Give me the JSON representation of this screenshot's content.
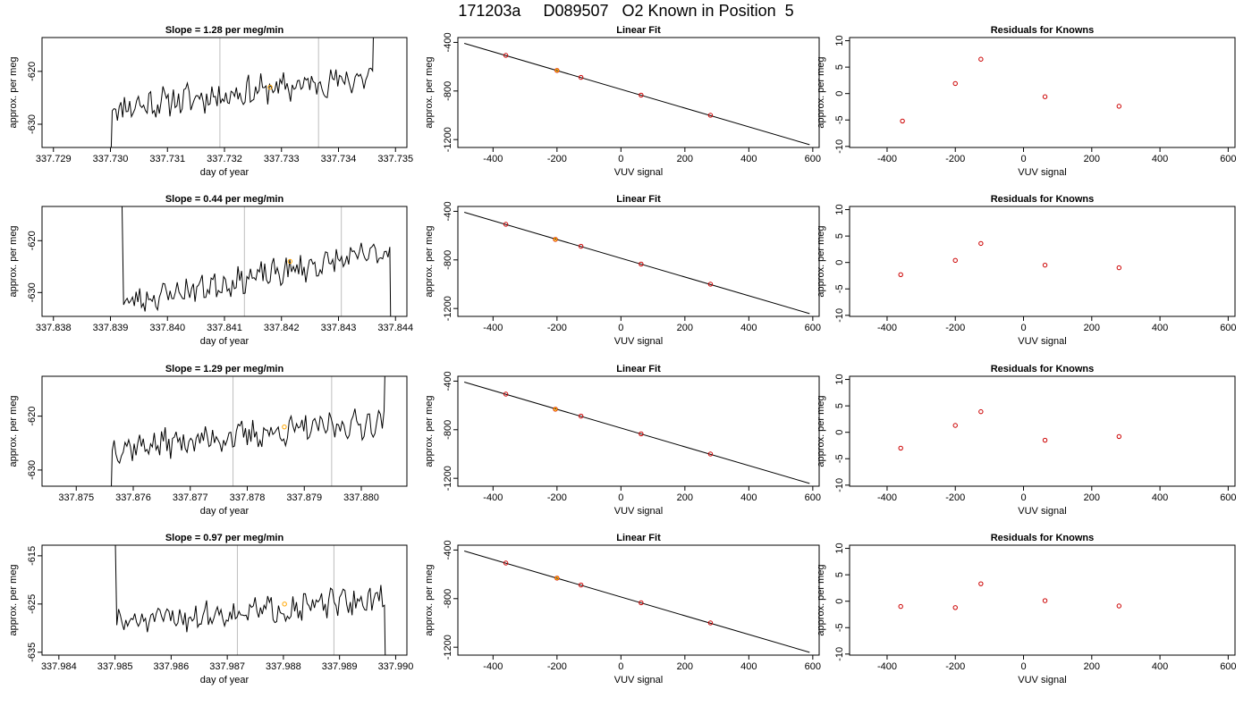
{
  "title": "171203a     D089507   O2 Known in Position  5",
  "colors": {
    "trace": "#000000",
    "vline": "#bebebe",
    "marker_orange": "#ffa500",
    "marker_red": "#cc0000",
    "fitline": "#000000"
  },
  "chart_data": [
    {
      "row": 1,
      "panels": [
        {
          "type": "line",
          "title": "Slope =  1.28  per meg/min",
          "xlabel": "day of year",
          "ylabel": "approx. per meg",
          "xlim": [
            337.7288,
            337.7352
          ],
          "ylim": [
            -634.4,
            -613.6
          ],
          "xticks": [
            337.729,
            337.73,
            337.731,
            337.732,
            337.733,
            337.734,
            337.735
          ],
          "xtick_labels": [
            "337.729",
            "337.730",
            "337.731",
            "337.732",
            "337.733",
            "337.734",
            "337.735"
          ],
          "yticks": [
            -630,
            -620
          ],
          "ytick_labels": [
            "-630",
            "-620"
          ],
          "vlines": [
            337.73192,
            337.73365
          ],
          "trace": {
            "x_start": 337.73,
            "x_end": 337.7346,
            "baseline_start": -627,
            "baseline_end": -621,
            "noise": 2.4,
            "seed": 11,
            "start_y": -640,
            "end_y": -610
          },
          "marker": {
            "x": 337.7328,
            "y": -623
          }
        },
        {
          "type": "scatter",
          "title": "Linear Fit",
          "xlabel": "VUV signal",
          "ylabel": "approx. per meg",
          "xlim": [
            -510,
            620
          ],
          "ylim": [
            -1265,
            -360
          ],
          "xticks": [
            -400,
            -200,
            0,
            200,
            400,
            600
          ],
          "xtick_labels": [
            "-400",
            "-200",
            "0",
            "200",
            "400",
            "600"
          ],
          "yticks": [
            -1200,
            -800,
            -400
          ],
          "ytick_labels": [
            "-1200",
            "-800",
            "-400"
          ],
          "line": {
            "x": [
              -490,
              590
            ],
            "y": [
              -408,
              -1242
            ]
          },
          "points": [
            {
              "x": -360,
              "y": -507
            },
            {
              "x": -200,
              "y": -631
            },
            {
              "x": -125,
              "y": -688
            },
            {
              "x": 63,
              "y": -834
            },
            {
              "x": 280,
              "y": -1000
            }
          ],
          "highlight_index": 1
        },
        {
          "type": "scatter",
          "title": "Residuals for Knowns",
          "xlabel": "VUV signal",
          "ylabel": "approx. per meg",
          "xlim": [
            -510,
            620
          ],
          "ylim": [
            -10.2,
            10.6
          ],
          "xticks": [
            -400,
            -200,
            0,
            200,
            400,
            600
          ],
          "xtick_labels": [
            "-400",
            "-200",
            "0",
            "200",
            "400",
            "600"
          ],
          "yticks": [
            -10,
            -5,
            0,
            5,
            10
          ],
          "ytick_labels": [
            "-10",
            "-5",
            "0",
            "5",
            "10"
          ],
          "points": [
            {
              "x": -355,
              "y": -5.2
            },
            {
              "x": -200,
              "y": 1.9
            },
            {
              "x": -125,
              "y": 6.5
            },
            {
              "x": 63,
              "y": -0.6
            },
            {
              "x": 280,
              "y": -2.4
            }
          ]
        }
      ]
    },
    {
      "row": 2,
      "panels": [
        {
          "type": "line",
          "title": "Slope =  0.44  per meg/min",
          "xlabel": "day of year",
          "ylabel": "approx. per meg",
          "xlim": [
            337.8378,
            337.8442
          ],
          "ylim": [
            -634.6,
            -613.4
          ],
          "xticks": [
            337.838,
            337.839,
            337.84,
            337.841,
            337.842,
            337.843,
            337.844
          ],
          "xtick_labels": [
            "337.838",
            "337.839",
            "337.840",
            "337.841",
            "337.842",
            "337.843",
            "337.844"
          ],
          "yticks": [
            -630,
            -620
          ],
          "ytick_labels": [
            "-630",
            "-620"
          ],
          "vlines": [
            337.84135,
            337.84305
          ],
          "trace": {
            "x_start": 337.8392,
            "x_end": 337.8439,
            "baseline_start": -632,
            "baseline_end": -622,
            "noise": 2.2,
            "seed": 23,
            "start_y": -610,
            "end_y": -640
          },
          "marker": {
            "x": 337.84215,
            "y": -624
          }
        },
        {
          "type": "scatter",
          "title": "Linear Fit",
          "xlabel": "VUV signal",
          "ylabel": "approx. per meg",
          "xlim": [
            -510,
            620
          ],
          "ylim": [
            -1265,
            -360
          ],
          "xticks": [
            -400,
            -200,
            0,
            200,
            400,
            600
          ],
          "xtick_labels": [
            "-400",
            "-200",
            "0",
            "200",
            "400",
            "600"
          ],
          "yticks": [
            -1200,
            -800,
            -400
          ],
          "ytick_labels": [
            "-1200",
            "-800",
            "-400"
          ],
          "line": {
            "x": [
              -490,
              590
            ],
            "y": [
              -408,
              -1242
            ]
          },
          "points": [
            {
              "x": -360,
              "y": -507
            },
            {
              "x": -205,
              "y": -631
            },
            {
              "x": -125,
              "y": -688
            },
            {
              "x": 63,
              "y": -834
            },
            {
              "x": 280,
              "y": -1000
            }
          ],
          "highlight_index": 1
        },
        {
          "type": "scatter",
          "title": "Residuals for Knowns",
          "xlabel": "VUV signal",
          "ylabel": "approx. per meg",
          "xlim": [
            -510,
            620
          ],
          "ylim": [
            -10.2,
            10.6
          ],
          "xticks": [
            -400,
            -200,
            0,
            200,
            400,
            600
          ],
          "xtick_labels": [
            "-400",
            "-200",
            "0",
            "200",
            "400",
            "600"
          ],
          "yticks": [
            -10,
            -5,
            0,
            5,
            10
          ],
          "ytick_labels": [
            "-10",
            "-5",
            "0",
            "5",
            "10"
          ],
          "points": [
            {
              "x": -360,
              "y": -2.3
            },
            {
              "x": -200,
              "y": 0.4
            },
            {
              "x": -125,
              "y": 3.6
            },
            {
              "x": 63,
              "y": -0.5
            },
            {
              "x": 280,
              "y": -1.0
            }
          ]
        }
      ]
    },
    {
      "row": 3,
      "panels": [
        {
          "type": "line",
          "title": "Slope =  1.29  per meg/min",
          "xlabel": "day of year",
          "ylabel": "approx. per meg",
          "xlim": [
            337.8744,
            337.8808
          ],
          "ylim": [
            -633.0,
            -612.6
          ],
          "xticks": [
            337.875,
            337.876,
            337.877,
            337.878,
            337.879,
            337.88
          ],
          "xtick_labels": [
            "337.875",
            "337.876",
            "337.877",
            "337.878",
            "337.879",
            "337.880"
          ],
          "yticks": [
            -630,
            -620
          ],
          "ytick_labels": [
            "-630",
            "-620"
          ],
          "vlines": [
            337.87775,
            337.87948
          ],
          "trace": {
            "x_start": 337.8756,
            "x_end": 337.8804,
            "baseline_start": -626,
            "baseline_end": -621,
            "noise": 2.2,
            "seed": 37,
            "start_y": -640,
            "end_y": -610
          },
          "marker": {
            "x": 337.87865,
            "y": -622
          }
        },
        {
          "type": "scatter",
          "title": "Linear Fit",
          "xlabel": "VUV signal",
          "ylabel": "approx. per meg",
          "xlim": [
            -510,
            620
          ],
          "ylim": [
            -1265,
            -360
          ],
          "xticks": [
            -400,
            -200,
            0,
            200,
            400,
            600
          ],
          "xtick_labels": [
            "-400",
            "-200",
            "0",
            "200",
            "400",
            "600"
          ],
          "yticks": [
            -1200,
            -800,
            -400
          ],
          "ytick_labels": [
            "-1200",
            "-800",
            "-400"
          ],
          "line": {
            "x": [
              -490,
              590
            ],
            "y": [
              -408,
              -1242
            ]
          },
          "points": [
            {
              "x": -360,
              "y": -507
            },
            {
              "x": -205,
              "y": -631
            },
            {
              "x": -125,
              "y": -688
            },
            {
              "x": 63,
              "y": -834
            },
            {
              "x": 280,
              "y": -1000
            }
          ],
          "highlight_index": 1
        },
        {
          "type": "scatter",
          "title": "Residuals for Knowns",
          "xlabel": "VUV signal",
          "ylabel": "approx. per meg",
          "xlim": [
            -510,
            620
          ],
          "ylim": [
            -10.2,
            10.6
          ],
          "xticks": [
            -400,
            -200,
            0,
            200,
            400,
            600
          ],
          "xtick_labels": [
            "-400",
            "-200",
            "0",
            "200",
            "400",
            "600"
          ],
          "yticks": [
            -10,
            -5,
            0,
            5,
            10
          ],
          "ytick_labels": [
            "-10",
            "-5",
            "0",
            "5",
            "10"
          ],
          "points": [
            {
              "x": -360,
              "y": -3.0
            },
            {
              "x": -200,
              "y": 1.3
            },
            {
              "x": -125,
              "y": 3.9
            },
            {
              "x": 63,
              "y": -1.5
            },
            {
              "x": 280,
              "y": -0.8
            }
          ]
        }
      ]
    },
    {
      "row": 4,
      "panels": [
        {
          "type": "line",
          "title": "Slope =  0.97  per meg/min",
          "xlabel": "day of year",
          "ylabel": "approx. per meg",
          "xlim": [
            337.9837,
            337.9902
          ],
          "ylim": [
            -635.6,
            -612.8
          ],
          "xticks": [
            337.984,
            337.985,
            337.986,
            337.987,
            337.988,
            337.989,
            337.99
          ],
          "xtick_labels": [
            "337.984",
            "337.985",
            "337.986",
            "337.987",
            "337.988",
            "337.989",
            "337.990"
          ],
          "yticks": [
            -635,
            -625,
            -615
          ],
          "ytick_labels": [
            "-635",
            "-625",
            "-615"
          ],
          "vlines": [
            337.98718,
            337.9889
          ],
          "trace": {
            "x_start": 337.985,
            "x_end": 337.9898,
            "baseline_start": -629,
            "baseline_end": -624,
            "noise": 2.4,
            "seed": 51,
            "start_y": -608,
            "end_y": -640
          },
          "marker": {
            "x": 337.98802,
            "y": -625
          }
        },
        {
          "type": "scatter",
          "title": "Linear Fit",
          "xlabel": "VUV signal",
          "ylabel": "approx. per meg",
          "xlim": [
            -510,
            620
          ],
          "ylim": [
            -1265,
            -360
          ],
          "xticks": [
            -400,
            -200,
            0,
            200,
            400,
            600
          ],
          "xtick_labels": [
            "-400",
            "-200",
            "0",
            "200",
            "400",
            "600"
          ],
          "yticks": [
            -1200,
            -800,
            -400
          ],
          "ytick_labels": [
            "-1200",
            "-800",
            "-400"
          ],
          "line": {
            "x": [
              -490,
              590
            ],
            "y": [
              -408,
              -1242
            ]
          },
          "points": [
            {
              "x": -360,
              "y": -507
            },
            {
              "x": -200,
              "y": -631
            },
            {
              "x": -125,
              "y": -688
            },
            {
              "x": 63,
              "y": -834
            },
            {
              "x": 280,
              "y": -1000
            }
          ],
          "highlight_index": 1
        },
        {
          "type": "scatter",
          "title": "Residuals for Knowns",
          "xlabel": "VUV signal",
          "ylabel": "approx. per meg",
          "xlim": [
            -510,
            620
          ],
          "ylim": [
            -10.2,
            10.6
          ],
          "xticks": [
            -400,
            -200,
            0,
            200,
            400,
            600
          ],
          "xtick_labels": [
            "-400",
            "-200",
            "0",
            "200",
            "400",
            "600"
          ],
          "yticks": [
            -10,
            -5,
            0,
            5,
            10
          ],
          "ytick_labels": [
            "-10",
            "-5",
            "0",
            "5",
            "10"
          ],
          "points": [
            {
              "x": -360,
              "y": -1.0
            },
            {
              "x": -200,
              "y": -1.2
            },
            {
              "x": -125,
              "y": 3.3
            },
            {
              "x": 63,
              "y": 0.1
            },
            {
              "x": 280,
              "y": -0.9
            }
          ]
        }
      ]
    }
  ]
}
